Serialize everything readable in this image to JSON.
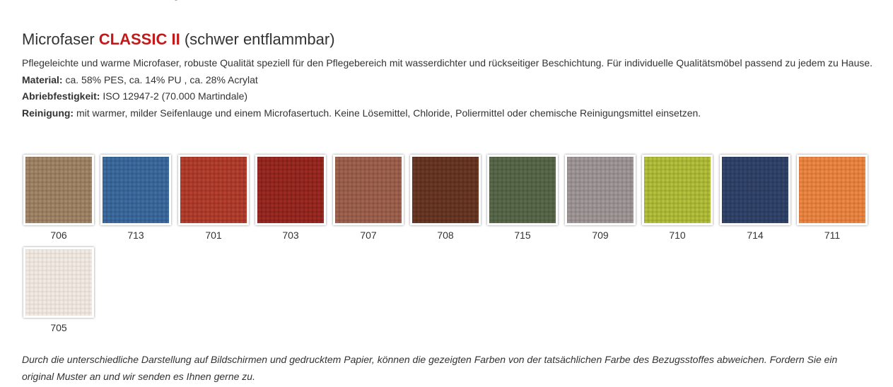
{
  "product": {
    "title_prefix": "Microfaser ",
    "title_accent": "CLASSIC II",
    "title_suffix": " (schwer entflammbar)",
    "description": "Pflegeleichte und warme Microfaser, robuste Qualität speziell für den Pflegebereich mit wasserdichter und rückseitiger Beschichtung. Für individuelle Qualitätsmöbel passend zu jedem zu Hause.",
    "properties": [
      {
        "label": "Material:",
        "value": " ca. 58% PES, ca. 14% PU , ca. 28% Acrylat"
      },
      {
        "label": "Abriebfestigkeit:",
        "value": " ISO 12947-2 (70.000 Martindale)"
      },
      {
        "label": "Reinigung:",
        "value": " mit warmer, milder Seifenlauge und einem Microfasertuch. Keine Lösemittel, Chloride, Poliermittel oder chemische Reinigungsmittel einsetzen."
      }
    ],
    "accent_color": "#c21a1a"
  },
  "swatches": [
    {
      "code": "706",
      "color": "#a58a6a",
      "color_dark": "#8a7055"
    },
    {
      "code": "713",
      "color": "#3f6ea3",
      "color_dark": "#305a88"
    },
    {
      "code": "701",
      "color": "#b8412f",
      "color_dark": "#983224"
    },
    {
      "code": "703",
      "color": "#9e2b22",
      "color_dark": "#80201a"
    },
    {
      "code": "707",
      "color": "#a36552",
      "color_dark": "#875141"
    },
    {
      "code": "708",
      "color": "#6d3a26",
      "color_dark": "#562c1c"
    },
    {
      "code": "715",
      "color": "#5c6b4c",
      "color_dark": "#4a573d"
    },
    {
      "code": "709",
      "color": "#a39a9a",
      "color_dark": "#8a8282"
    },
    {
      "code": "710",
      "color": "#b5c23c",
      "color_dark": "#99a52f"
    },
    {
      "code": "714",
      "color": "#34466e",
      "color_dark": "#28385a"
    },
    {
      "code": "711",
      "color": "#ef8a45",
      "color_dark": "#d17237"
    },
    {
      "code": "705",
      "color": "#f2ebe4",
      "color_dark": "#e0d8cf"
    }
  ],
  "disclaimer": "Durch die unterschiedliche Darstellung auf Bildschirmen und gedrucktem Papier, können die gezeigten Farben von der tatsächlichen Farbe des Bezugsstoffes abweichen. Fordern Sie ein original Muster an und wir senden es Ihnen gerne zu."
}
